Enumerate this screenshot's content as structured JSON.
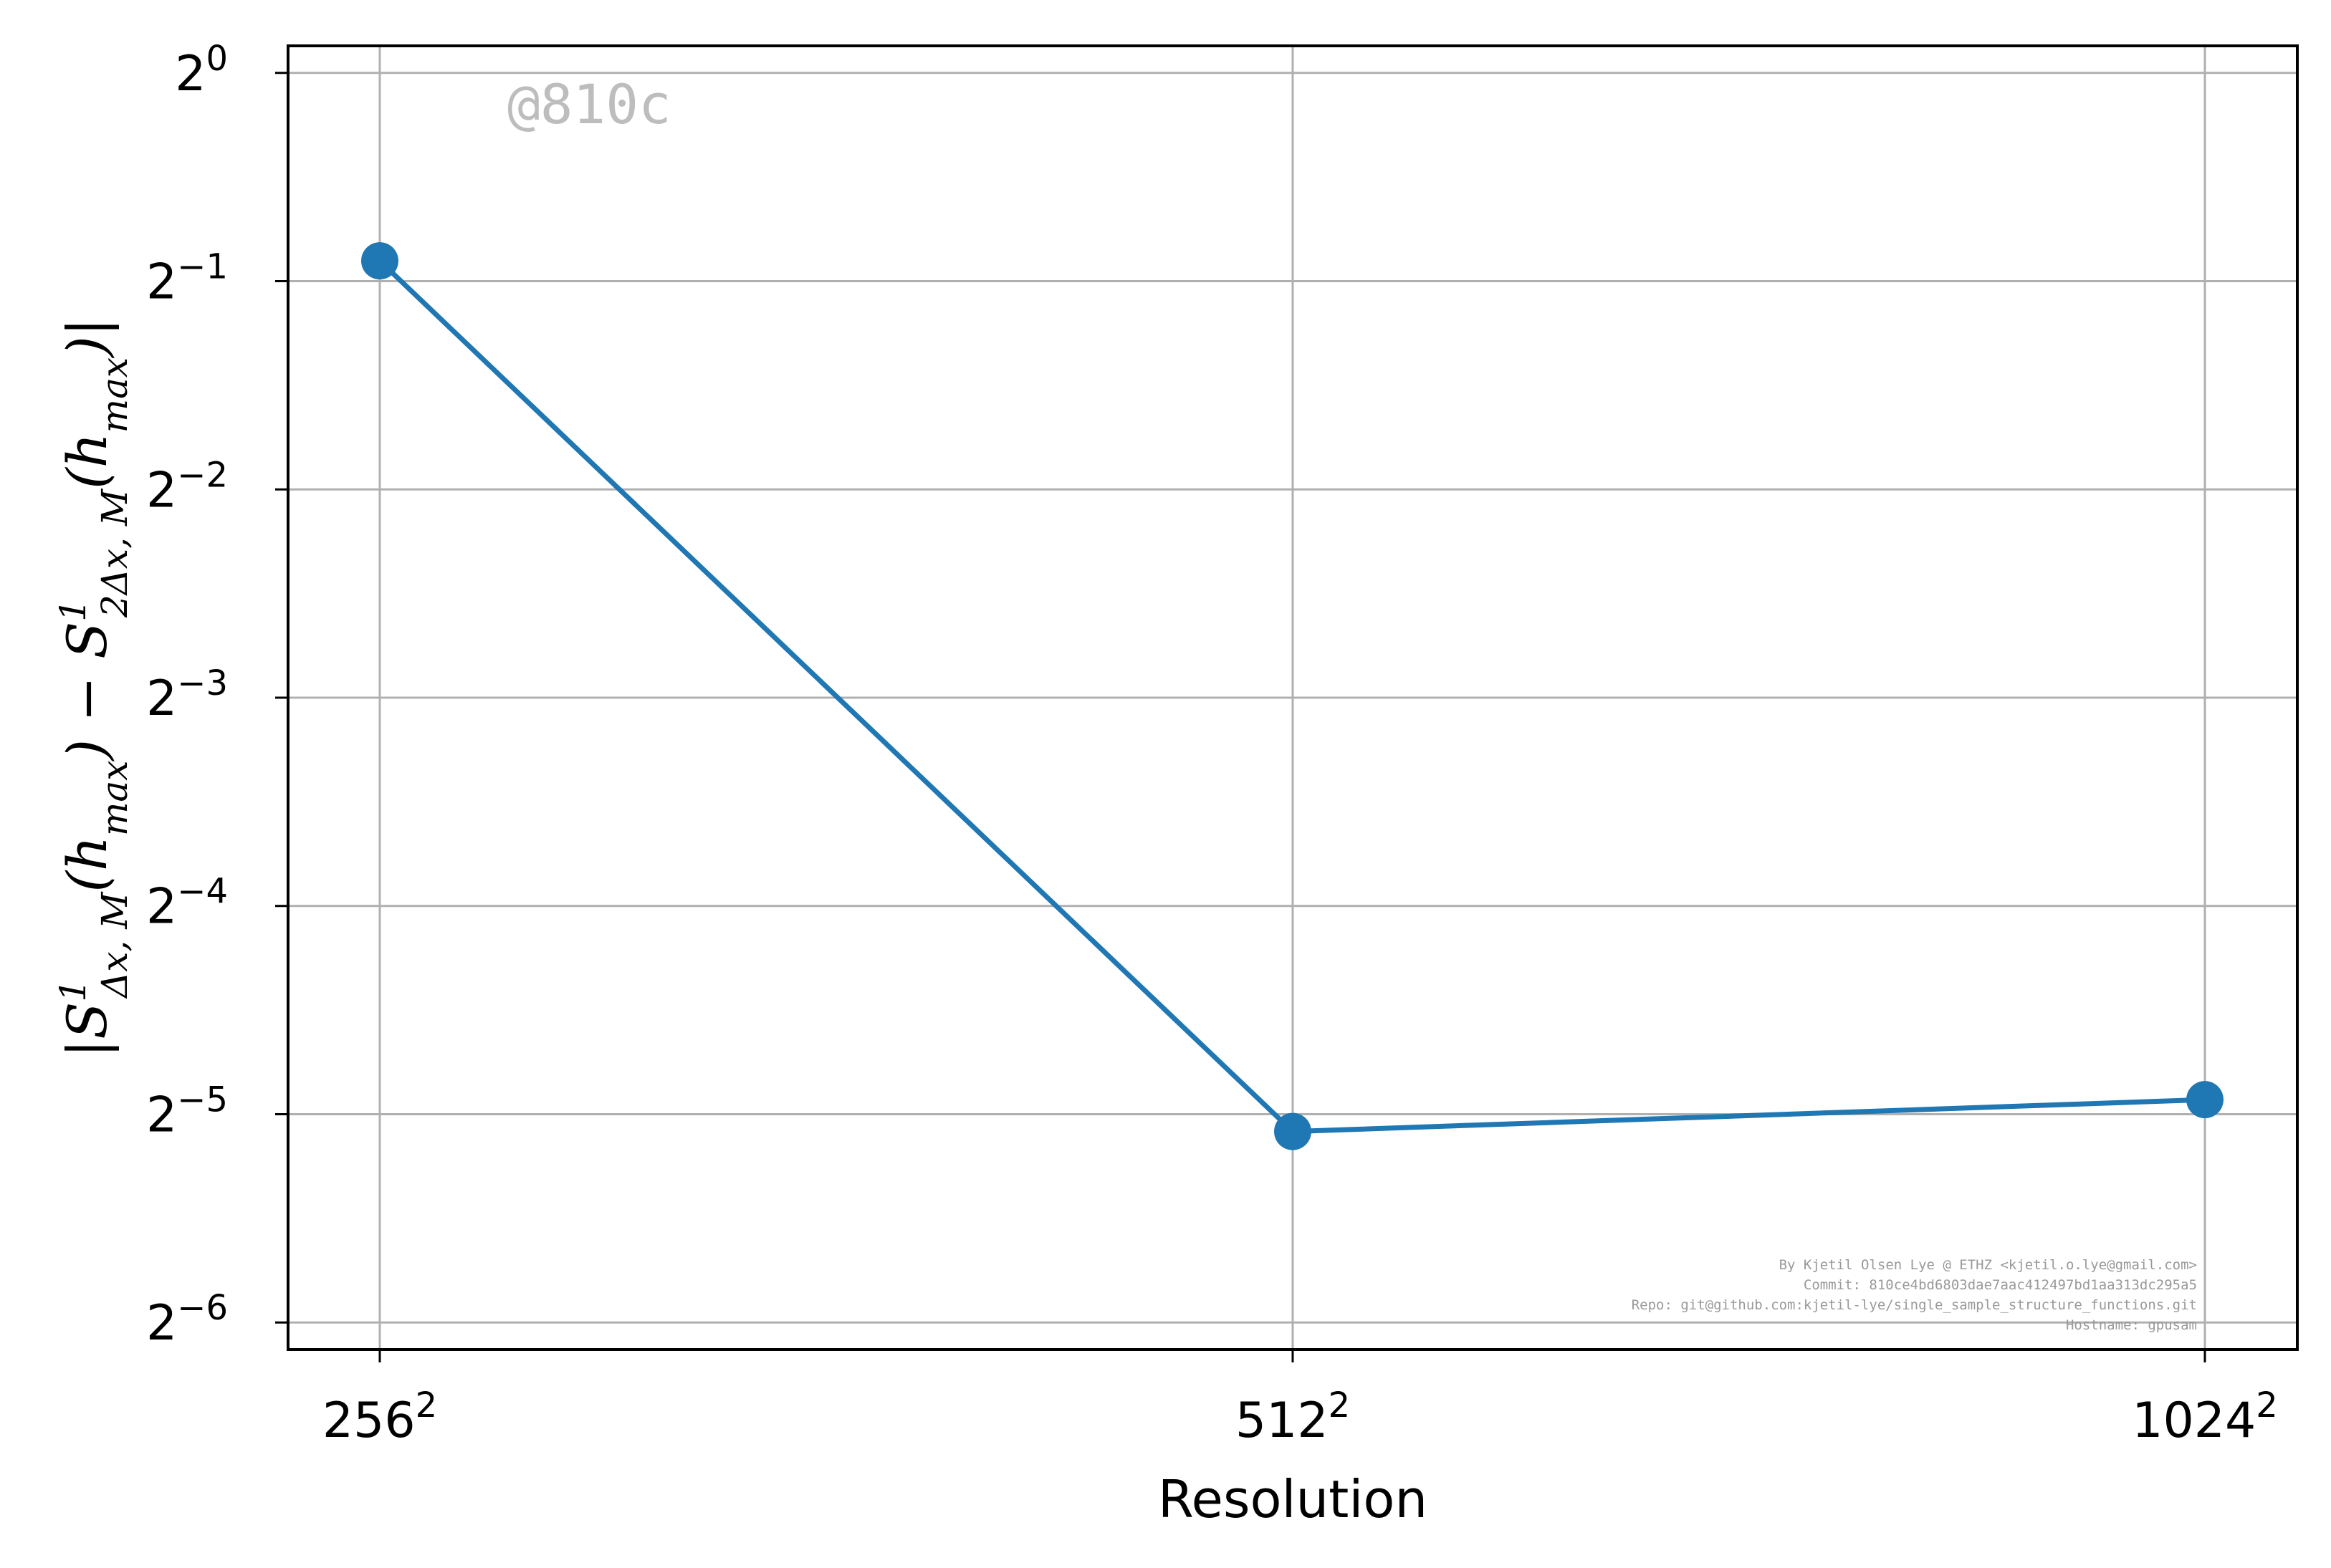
{
  "chart_data": {
    "type": "line",
    "title": "",
    "xlabel": "Resolution",
    "x_categories": [
      "256",
      "512",
      "1024"
    ],
    "x_category_exponent": "2",
    "y_scale": "log2",
    "ylim_exponents": [
      -6.13,
      0.13
    ],
    "y_ticks": [
      {
        "base": "2",
        "exp": "0",
        "value": 0
      },
      {
        "base": "2",
        "exp": "−1",
        "value": -1
      },
      {
        "base": "2",
        "exp": "−2",
        "value": -2
      },
      {
        "base": "2",
        "exp": "−3",
        "value": -3
      },
      {
        "base": "2",
        "exp": "−4",
        "value": -4
      },
      {
        "base": "2",
        "exp": "−5",
        "value": -5
      },
      {
        "base": "2",
        "exp": "−6",
        "value": -6
      }
    ],
    "series": [
      {
        "values": [
          0.535,
          0.0295,
          0.0328
        ],
        "color": "#1f77b4",
        "marker": "circle"
      }
    ],
    "grid": true,
    "ylabel_parts": {
      "open": "|S",
      "sup1": "1",
      "sub1": "Δx, M",
      "mid": "(h",
      "sub_max": "max",
      "minus": ") − S",
      "sup2": "1",
      "sub2": "2Δx, M",
      "close": ")|"
    },
    "watermark": "@810c",
    "credits": [
      "By Kjetil Olsen Lye @ ETHZ <kjetil.o.lye@gmail.com>",
      "Commit: 810ce4bd6803dae7aac412497bd1aa313dc295a5",
      "Repo: git@github.com:kjetil-lye/single_sample_structure_functions.git",
      "Hostname: gpusam"
    ]
  }
}
